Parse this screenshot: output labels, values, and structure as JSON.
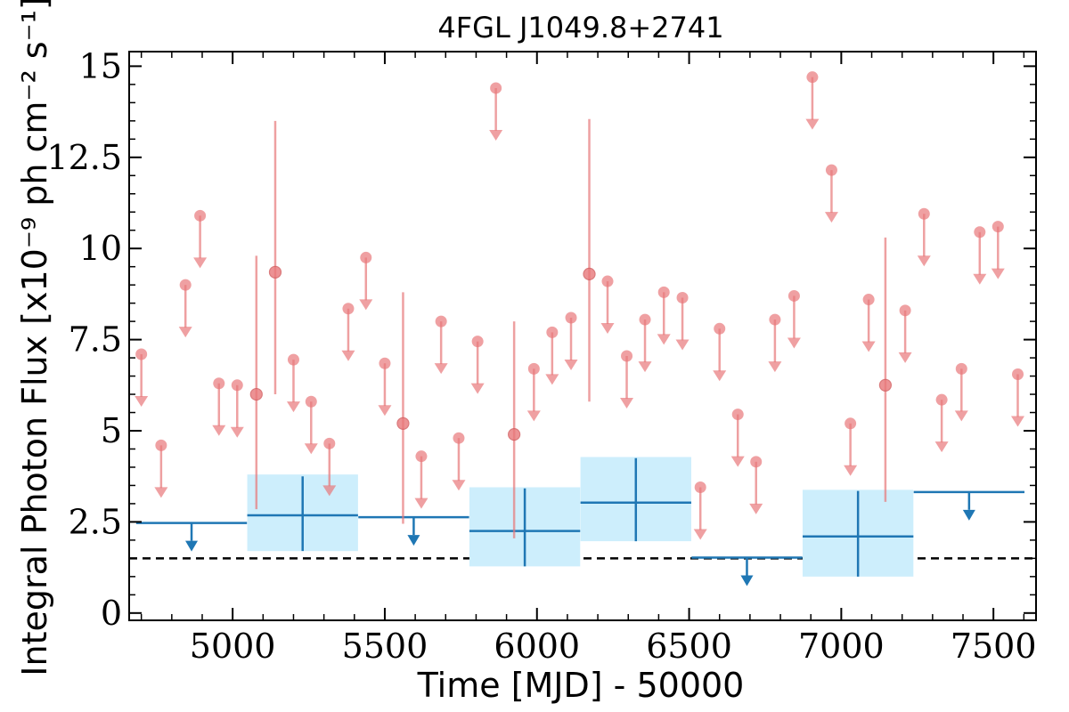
{
  "chart_data": {
    "type": "scatter",
    "title": "4FGL J1049.8+2741",
    "xlabel": "Time [MJD] - 50000",
    "ylabel": "Integral Photon Flux [x10⁻⁹ ph cm⁻² s⁻¹]",
    "xlim": [
      4660,
      7640
    ],
    "ylim": [
      -0.2,
      15.4
    ],
    "x_ticks": [
      5000,
      5500,
      6000,
      6500,
      7000,
      7500
    ],
    "x_tick_labels": [
      "5000",
      "5500",
      "6000",
      "6500",
      "7000",
      "7500"
    ],
    "y_ticks": [
      0,
      2.5,
      5,
      7.5,
      10,
      12.5,
      15
    ],
    "y_tick_labels": [
      "0",
      "2.5",
      "5",
      "7.5",
      "10",
      "12.5",
      "15"
    ],
    "grid": false,
    "colors": {
      "short_bins": "#e8787a",
      "long_bins": "#1f77b4",
      "long_bins_fill": "#cdeefc",
      "reference_line": "#000000"
    },
    "reference_line": {
      "y": 1.5,
      "style": "dashed"
    },
    "series": [
      {
        "bin_width": 60,
        "detections": [
          {
            "x": 5078,
            "y": 6.0,
            "ylow": 2.85,
            "yhigh": 9.8
          },
          {
            "x": 5140,
            "y": 9.35,
            "ylow": 6.0,
            "yhigh": 13.5
          },
          {
            "x": 5560,
            "y": 5.2,
            "ylow": 2.45,
            "yhigh": 8.8
          },
          {
            "x": 5925,
            "y": 4.9,
            "ylow": 2.05,
            "yhigh": 8.0
          },
          {
            "x": 6172,
            "y": 9.3,
            "ylow": 5.8,
            "yhigh": 13.55
          },
          {
            "x": 7145,
            "y": 6.25,
            "ylow": 3.05,
            "yhigh": 10.3
          }
        ],
        "upper_limits": [
          {
            "x": 4700,
            "y": 7.1
          },
          {
            "x": 4765,
            "y": 4.6
          },
          {
            "x": 4845,
            "y": 9.0
          },
          {
            "x": 4893,
            "y": 10.9
          },
          {
            "x": 4955,
            "y": 6.3
          },
          {
            "x": 5015,
            "y": 6.25
          },
          {
            "x": 5200,
            "y": 6.95
          },
          {
            "x": 5258,
            "y": 5.8
          },
          {
            "x": 5318,
            "y": 4.65
          },
          {
            "x": 5380,
            "y": 8.35
          },
          {
            "x": 5438,
            "y": 9.75
          },
          {
            "x": 5500,
            "y": 6.85
          },
          {
            "x": 5620,
            "y": 4.3
          },
          {
            "x": 5685,
            "y": 8.0
          },
          {
            "x": 5743,
            "y": 4.8
          },
          {
            "x": 5805,
            "y": 7.45
          },
          {
            "x": 5865,
            "y": 14.4
          },
          {
            "x": 5990,
            "y": 6.7
          },
          {
            "x": 6050,
            "y": 7.7
          },
          {
            "x": 6112,
            "y": 8.1
          },
          {
            "x": 6232,
            "y": 9.1
          },
          {
            "x": 6295,
            "y": 7.05
          },
          {
            "x": 6355,
            "y": 8.05
          },
          {
            "x": 6417,
            "y": 8.8
          },
          {
            "x": 6478,
            "y": 8.65
          },
          {
            "x": 6537,
            "y": 3.45
          },
          {
            "x": 6600,
            "y": 7.8
          },
          {
            "x": 6660,
            "y": 5.45
          },
          {
            "x": 6720,
            "y": 4.15
          },
          {
            "x": 6782,
            "y": 8.05
          },
          {
            "x": 6845,
            "y": 8.7
          },
          {
            "x": 6905,
            "y": 14.7
          },
          {
            "x": 6968,
            "y": 12.15
          },
          {
            "x": 7030,
            "y": 5.2
          },
          {
            "x": 7090,
            "y": 8.6
          },
          {
            "x": 7210,
            "y": 8.3
          },
          {
            "x": 7272,
            "y": 10.95
          },
          {
            "x": 7330,
            "y": 5.85
          },
          {
            "x": 7395,
            "y": 6.7
          },
          {
            "x": 7455,
            "y": 10.45
          },
          {
            "x": 7515,
            "y": 10.6
          },
          {
            "x": 7580,
            "y": 6.55
          }
        ]
      },
      {
        "bin_width": 365,
        "detections": [
          {
            "x": 5230,
            "y": 2.68,
            "ylow": 1.7,
            "yhigh": 3.75,
            "xlow": 5048,
            "xhigh": 5412,
            "band_low": 1.7,
            "band_high": 3.8
          },
          {
            "x": 5960,
            "y": 2.25,
            "ylow": 1.28,
            "yhigh": 3.42,
            "xlow": 5778,
            "xhigh": 6142,
            "band_low": 1.28,
            "band_high": 3.45
          },
          {
            "x": 6325,
            "y": 3.03,
            "ylow": 1.97,
            "yhigh": 4.25,
            "xlow": 6143,
            "xhigh": 6507,
            "band_low": 1.97,
            "band_high": 4.28
          },
          {
            "x": 7055,
            "y": 2.1,
            "ylow": 1.0,
            "yhigh": 3.35,
            "xlow": 6873,
            "xhigh": 7237,
            "band_low": 1.0,
            "band_high": 3.38
          }
        ],
        "upper_limits": [
          {
            "x": 4865,
            "y": 2.47,
            "xlow": 4683,
            "xhigh": 5047
          },
          {
            "x": 5595,
            "y": 2.63,
            "xlow": 5413,
            "xhigh": 5777
          },
          {
            "x": 6690,
            "y": 1.52,
            "xlow": 6508,
            "xhigh": 6872
          },
          {
            "x": 7420,
            "y": 3.32,
            "xlow": 7238,
            "xhigh": 7602
          }
        ]
      }
    ]
  }
}
